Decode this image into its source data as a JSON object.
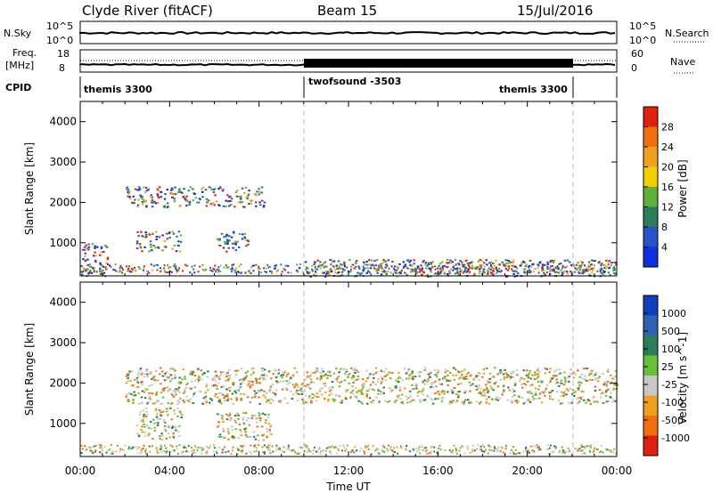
{
  "header": {
    "title": "Clyde River (fitACF)",
    "beam": "Beam 15",
    "date": "15/Jul/2016"
  },
  "strip_nsky": {
    "left_label": "N.Sky",
    "left_ticks": [
      "10^5",
      "10^0"
    ],
    "right_label": "N.Search",
    "right_ticks": [
      "10^5",
      "10^0"
    ]
  },
  "strip_freq": {
    "left_label_1": "Freq.",
    "left_label_2": "[MHz]",
    "left_ticks": [
      "18",
      "8"
    ],
    "right_label": "Nave",
    "right_ticks": [
      "60",
      "0"
    ]
  },
  "cpid": {
    "label": "CPID",
    "segments": [
      {
        "name": "themis 3300",
        "start": 0,
        "end": 10
      },
      {
        "name": "twofsound -3503",
        "start": 10,
        "end": 22
      },
      {
        "name": "themis 3300",
        "start": 22,
        "end": 24
      }
    ],
    "right_label": "themis 3300"
  },
  "power_panel": {
    "ylabel": "Slant Range [km]",
    "yticks": [
      "1000",
      "2000",
      "3000",
      "4000"
    ],
    "colorbar_label": "Power [dB]",
    "colorbar_ticks": [
      "4",
      "8",
      "12",
      "16",
      "20",
      "24",
      "28"
    ],
    "colors": [
      "#1030e0",
      "#2a52c8",
      "#2e7d5a",
      "#60b040",
      "#f0d000",
      "#f0a020",
      "#f07010",
      "#e02010"
    ]
  },
  "velocity_panel": {
    "ylabel": "Slant Range [km]",
    "yticks": [
      "1000",
      "2000",
      "3000",
      "4000"
    ],
    "colorbar_label": "Velocity [m s^-1]",
    "colorbar_ticks": [
      "1000",
      "500",
      "100",
      "25",
      "-25",
      "-100",
      "-500",
      "-1000"
    ],
    "colors": [
      "#1040c0",
      "#2a62b8",
      "#2e7d5a",
      "#6abf3a",
      "#c8c8c8",
      "#f0a020",
      "#f07010",
      "#e02010"
    ]
  },
  "x_axis": {
    "label": "Time UT",
    "ticks": [
      "00:00",
      "04:00",
      "08:00",
      "12:00",
      "16:00",
      "20:00",
      "00:00"
    ]
  },
  "chart_data": {
    "type": "heatmap",
    "x_range_hours": [
      0,
      24
    ],
    "y_range_km": [
      180,
      4500
    ],
    "markers_hours": [
      10,
      22
    ],
    "power_echo_regions": [
      {
        "t": [
          2.0,
          8.3
        ],
        "r": [
          1900,
          2400
        ],
        "level": "8-12 dB"
      },
      {
        "t": [
          0.0,
          1.2
        ],
        "r": [
          180,
          1000
        ],
        "level": "24-28+ dB"
      },
      {
        "t": [
          2.5,
          4.5
        ],
        "r": [
          800,
          1300
        ],
        "level": "12-20 dB"
      },
      {
        "t": [
          6.0,
          7.5
        ],
        "r": [
          800,
          1300
        ],
        "level": "12-20 dB"
      },
      {
        "t": [
          10.0,
          24.0
        ],
        "r": [
          180,
          600
        ],
        "level": "12-24 dB"
      }
    ],
    "velocity_echo_regions": [
      {
        "t": [
          2.5,
          4.5
        ],
        "r": [
          600,
          1400
        ],
        "level": "100-500 m/s"
      },
      {
        "t": [
          6.0,
          8.5
        ],
        "r": [
          600,
          1300
        ],
        "level": "-100 to -500 m/s"
      },
      {
        "t": [
          2.0,
          24.0
        ],
        "r": [
          1500,
          2400
        ],
        "level": "-25 to 25 m/s"
      }
    ]
  }
}
